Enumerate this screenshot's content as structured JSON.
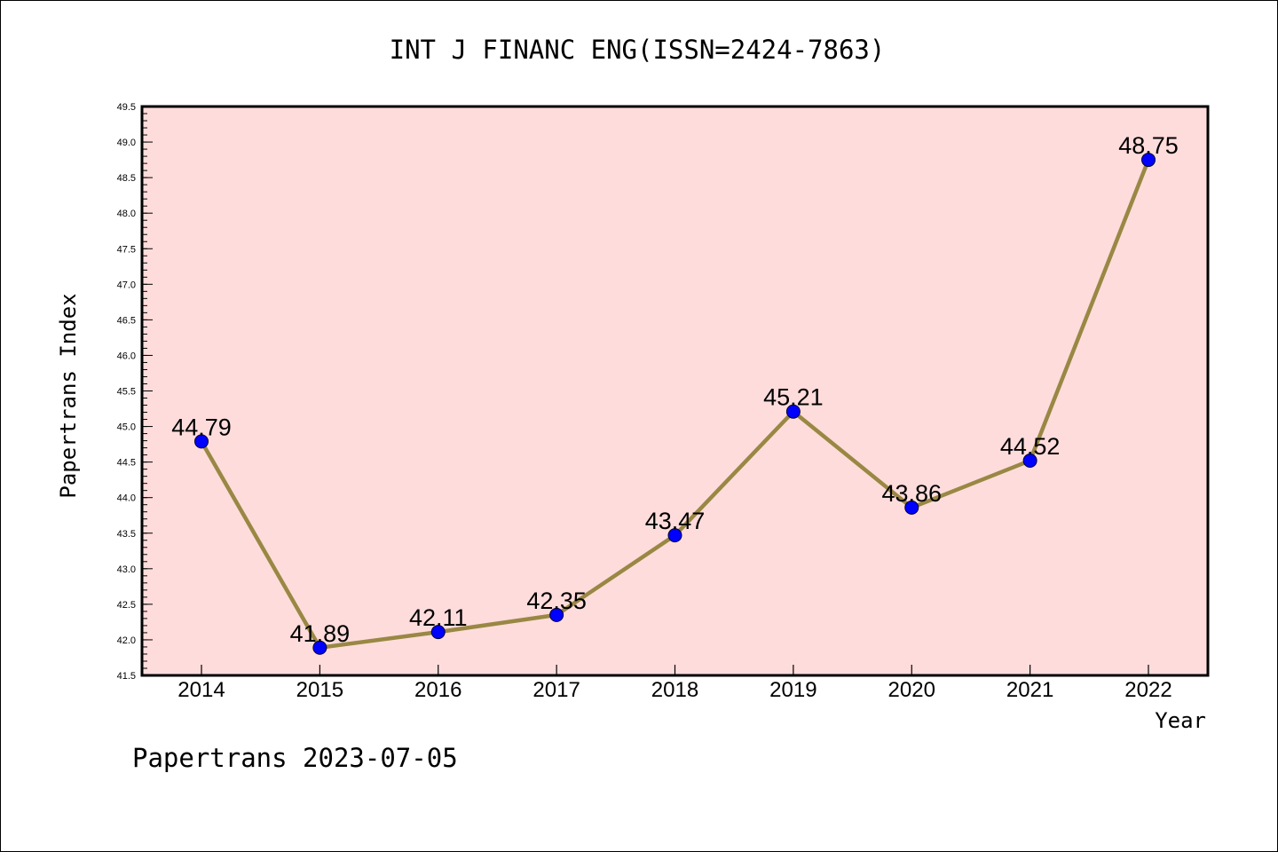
{
  "chart_data": {
    "type": "line",
    "title": "INT J FINANC ENG(ISSN=2424-7863)",
    "xlabel": "Year",
    "ylabel": "Papertrans Index",
    "categories": [
      "2014",
      "2015",
      "2016",
      "2017",
      "2018",
      "2019",
      "2020",
      "2021",
      "2022"
    ],
    "series": [
      {
        "values": [
          44.79,
          41.89,
          42.11,
          42.35,
          43.47,
          45.21,
          43.86,
          44.52,
          48.75
        ],
        "labels": [
          "44.79",
          "41.89",
          "42.11",
          "42.35",
          "43.47",
          "45.21",
          "43.86",
          "44.52",
          "48.75"
        ]
      }
    ],
    "ylim": [
      41.5,
      49.5
    ],
    "ytick_step": 0.5,
    "yticks": [
      "41.5",
      "42.0",
      "42.5",
      "43.0",
      "43.5",
      "44.0",
      "44.5",
      "45.0",
      "45.5",
      "46.0",
      "46.5",
      "47.0",
      "47.5",
      "48.0",
      "48.5",
      "49.0",
      "49.5"
    ],
    "grid": false,
    "colors": {
      "plot_background": "#ffdcdc",
      "line": "#998844",
      "marker": "#0000ff"
    }
  },
  "footer": {
    "text": "Papertrans 2023-07-05"
  }
}
